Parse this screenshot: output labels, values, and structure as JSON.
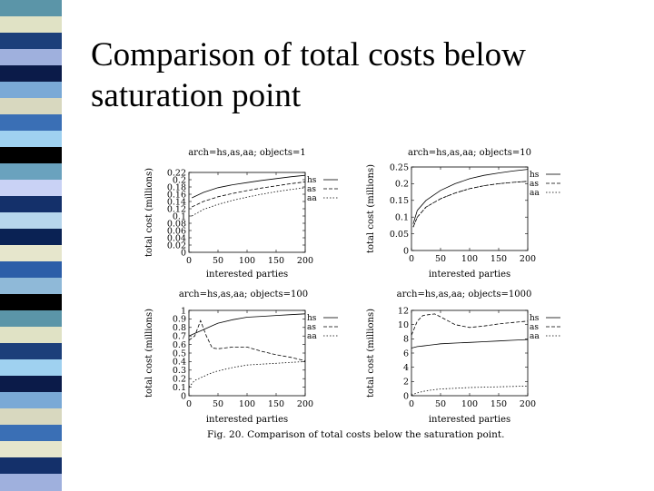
{
  "slide": {
    "title_line1": "Comparison of total costs below",
    "title_line2": "saturation point",
    "caption": "Fig. 20.   Comparison of total costs below the saturation point.",
    "stripe_colors": [
      "#5b95a8",
      "#e0e2c5",
      "#1c3f7a",
      "#9fb0dd",
      "#0b1b49",
      "#7aa9d6",
      "#d8d8bf",
      "#3a6fb5",
      "#9fd1f0",
      "#000000",
      "#6aa2be",
      "#c9d2f5",
      "#14306a",
      "#b7d6ec",
      "#0a2254",
      "#e6e6cc",
      "#2c5ea8",
      "#8fb9d8",
      "#000000",
      "#5b95a8",
      "#e0e2c5",
      "#1c3f7a",
      "#9fd1f0",
      "#0b1b49",
      "#7aa9d6",
      "#d8d8bf",
      "#3a6fb5",
      "#e6e6cc",
      "#14306a",
      "#9fb0dd"
    ]
  },
  "chart_data": [
    {
      "type": "line",
      "title": "arch=hs,as,aa; objects=1",
      "xlabel": "interested parties",
      "ylabel": "total cost (millions)",
      "xlim": [
        0,
        200
      ],
      "ylim": [
        0,
        0.22
      ],
      "xticks": [
        "0",
        "50",
        "100",
        "150",
        "200"
      ],
      "yticks": [
        "0",
        "0.02",
        "0.04",
        "0.06",
        "0.08",
        "0.1",
        "0.12",
        "0.14",
        "0.16",
        "0.18",
        "0.2",
        "0.22"
      ],
      "x": [
        5,
        25,
        50,
        75,
        100,
        125,
        150,
        175,
        200
      ],
      "series": [
        {
          "name": "hs",
          "values": [
            0.15,
            0.165,
            0.178,
            0.186,
            0.192,
            0.198,
            0.203,
            0.208,
            0.212
          ]
        },
        {
          "name": "as",
          "values": [
            0.125,
            0.14,
            0.153,
            0.162,
            0.17,
            0.177,
            0.183,
            0.189,
            0.194
          ]
        },
        {
          "name": "aa",
          "values": [
            0.1,
            0.118,
            0.132,
            0.143,
            0.152,
            0.16,
            0.167,
            0.173,
            0.178
          ]
        }
      ],
      "grid": false,
      "legend": "right"
    },
    {
      "type": "line",
      "title": "arch=hs,as,aa; objects=10",
      "xlabel": "interested parties",
      "ylabel": "total cost (millions)",
      "xlim": [
        0,
        200
      ],
      "ylim": [
        0,
        0.25
      ],
      "xticks": [
        "0",
        "50",
        "100",
        "150",
        "200"
      ],
      "yticks": [
        "0",
        "0.05",
        "0.1",
        "0.15",
        "0.2",
        "0.25"
      ],
      "x": [
        3,
        10,
        25,
        50,
        75,
        100,
        125,
        150,
        175,
        200
      ],
      "series": [
        {
          "name": "hs",
          "values": [
            0.08,
            0.12,
            0.15,
            0.18,
            0.2,
            0.215,
            0.225,
            0.232,
            0.238,
            0.243
          ]
        },
        {
          "name": "as",
          "values": [
            0.07,
            0.1,
            0.13,
            0.155,
            0.172,
            0.185,
            0.194,
            0.2,
            0.204,
            0.207
          ]
        },
        {
          "name": "aa",
          "values": [
            0.07,
            0.1,
            0.13,
            0.155,
            0.172,
            0.185,
            0.194,
            0.2,
            0.204,
            0.207
          ]
        }
      ],
      "grid": false,
      "legend": "right"
    },
    {
      "type": "line",
      "title": "arch=hs,as,aa; objects=100",
      "xlabel": "interested parties",
      "ylabel": "total cost (millions)",
      "xlim": [
        0,
        200
      ],
      "ylim": [
        0,
        1
      ],
      "xticks": [
        "0",
        "50",
        "100",
        "150",
        "200"
      ],
      "yticks": [
        "0",
        "0.1",
        "0.2",
        "0.3",
        "0.4",
        "0.5",
        "0.6",
        "0.7",
        "0.8",
        "0.9",
        "1"
      ],
      "x": [
        0,
        10,
        20,
        30,
        40,
        50,
        75,
        100,
        125,
        150,
        175,
        200
      ],
      "series": [
        {
          "name": "hs",
          "values": [
            0.7,
            0.73,
            0.76,
            0.79,
            0.82,
            0.85,
            0.89,
            0.92,
            0.93,
            0.94,
            0.95,
            0.96
          ]
        },
        {
          "name": "as",
          "values": [
            0.65,
            0.7,
            0.88,
            0.7,
            0.56,
            0.55,
            0.57,
            0.57,
            0.52,
            0.48,
            0.45,
            0.41
          ]
        },
        {
          "name": "aa",
          "values": [
            0.1,
            0.18,
            0.21,
            0.24,
            0.27,
            0.29,
            0.33,
            0.36,
            0.37,
            0.38,
            0.39,
            0.4
          ]
        }
      ],
      "grid": false,
      "legend": "right"
    },
    {
      "type": "line",
      "title": "arch=hs,as,aa; objects=1000",
      "xlabel": "interested parties",
      "ylabel": "total cost (millions)",
      "xlim": [
        0,
        200
      ],
      "ylim": [
        0,
        12
      ],
      "xticks": [
        "0",
        "50",
        "100",
        "150",
        "200"
      ],
      "yticks": [
        "0",
        "2",
        "4",
        "6",
        "8",
        "10",
        "12"
      ],
      "x": [
        0,
        10,
        20,
        30,
        40,
        50,
        75,
        100,
        125,
        150,
        175,
        200
      ],
      "series": [
        {
          "name": "hs",
          "values": [
            6.7,
            6.9,
            7.0,
            7.1,
            7.2,
            7.3,
            7.4,
            7.5,
            7.6,
            7.7,
            7.8,
            7.9
          ]
        },
        {
          "name": "as",
          "values": [
            8.5,
            10.5,
            11.3,
            11.4,
            11.5,
            11.1,
            10.0,
            9.6,
            9.8,
            10.1,
            10.3,
            10.5
          ]
        },
        {
          "name": "aa",
          "values": [
            0.1,
            0.4,
            0.6,
            0.75,
            0.85,
            0.95,
            1.05,
            1.15,
            1.2,
            1.25,
            1.3,
            1.35
          ]
        }
      ],
      "grid": false,
      "legend": "right"
    }
  ]
}
